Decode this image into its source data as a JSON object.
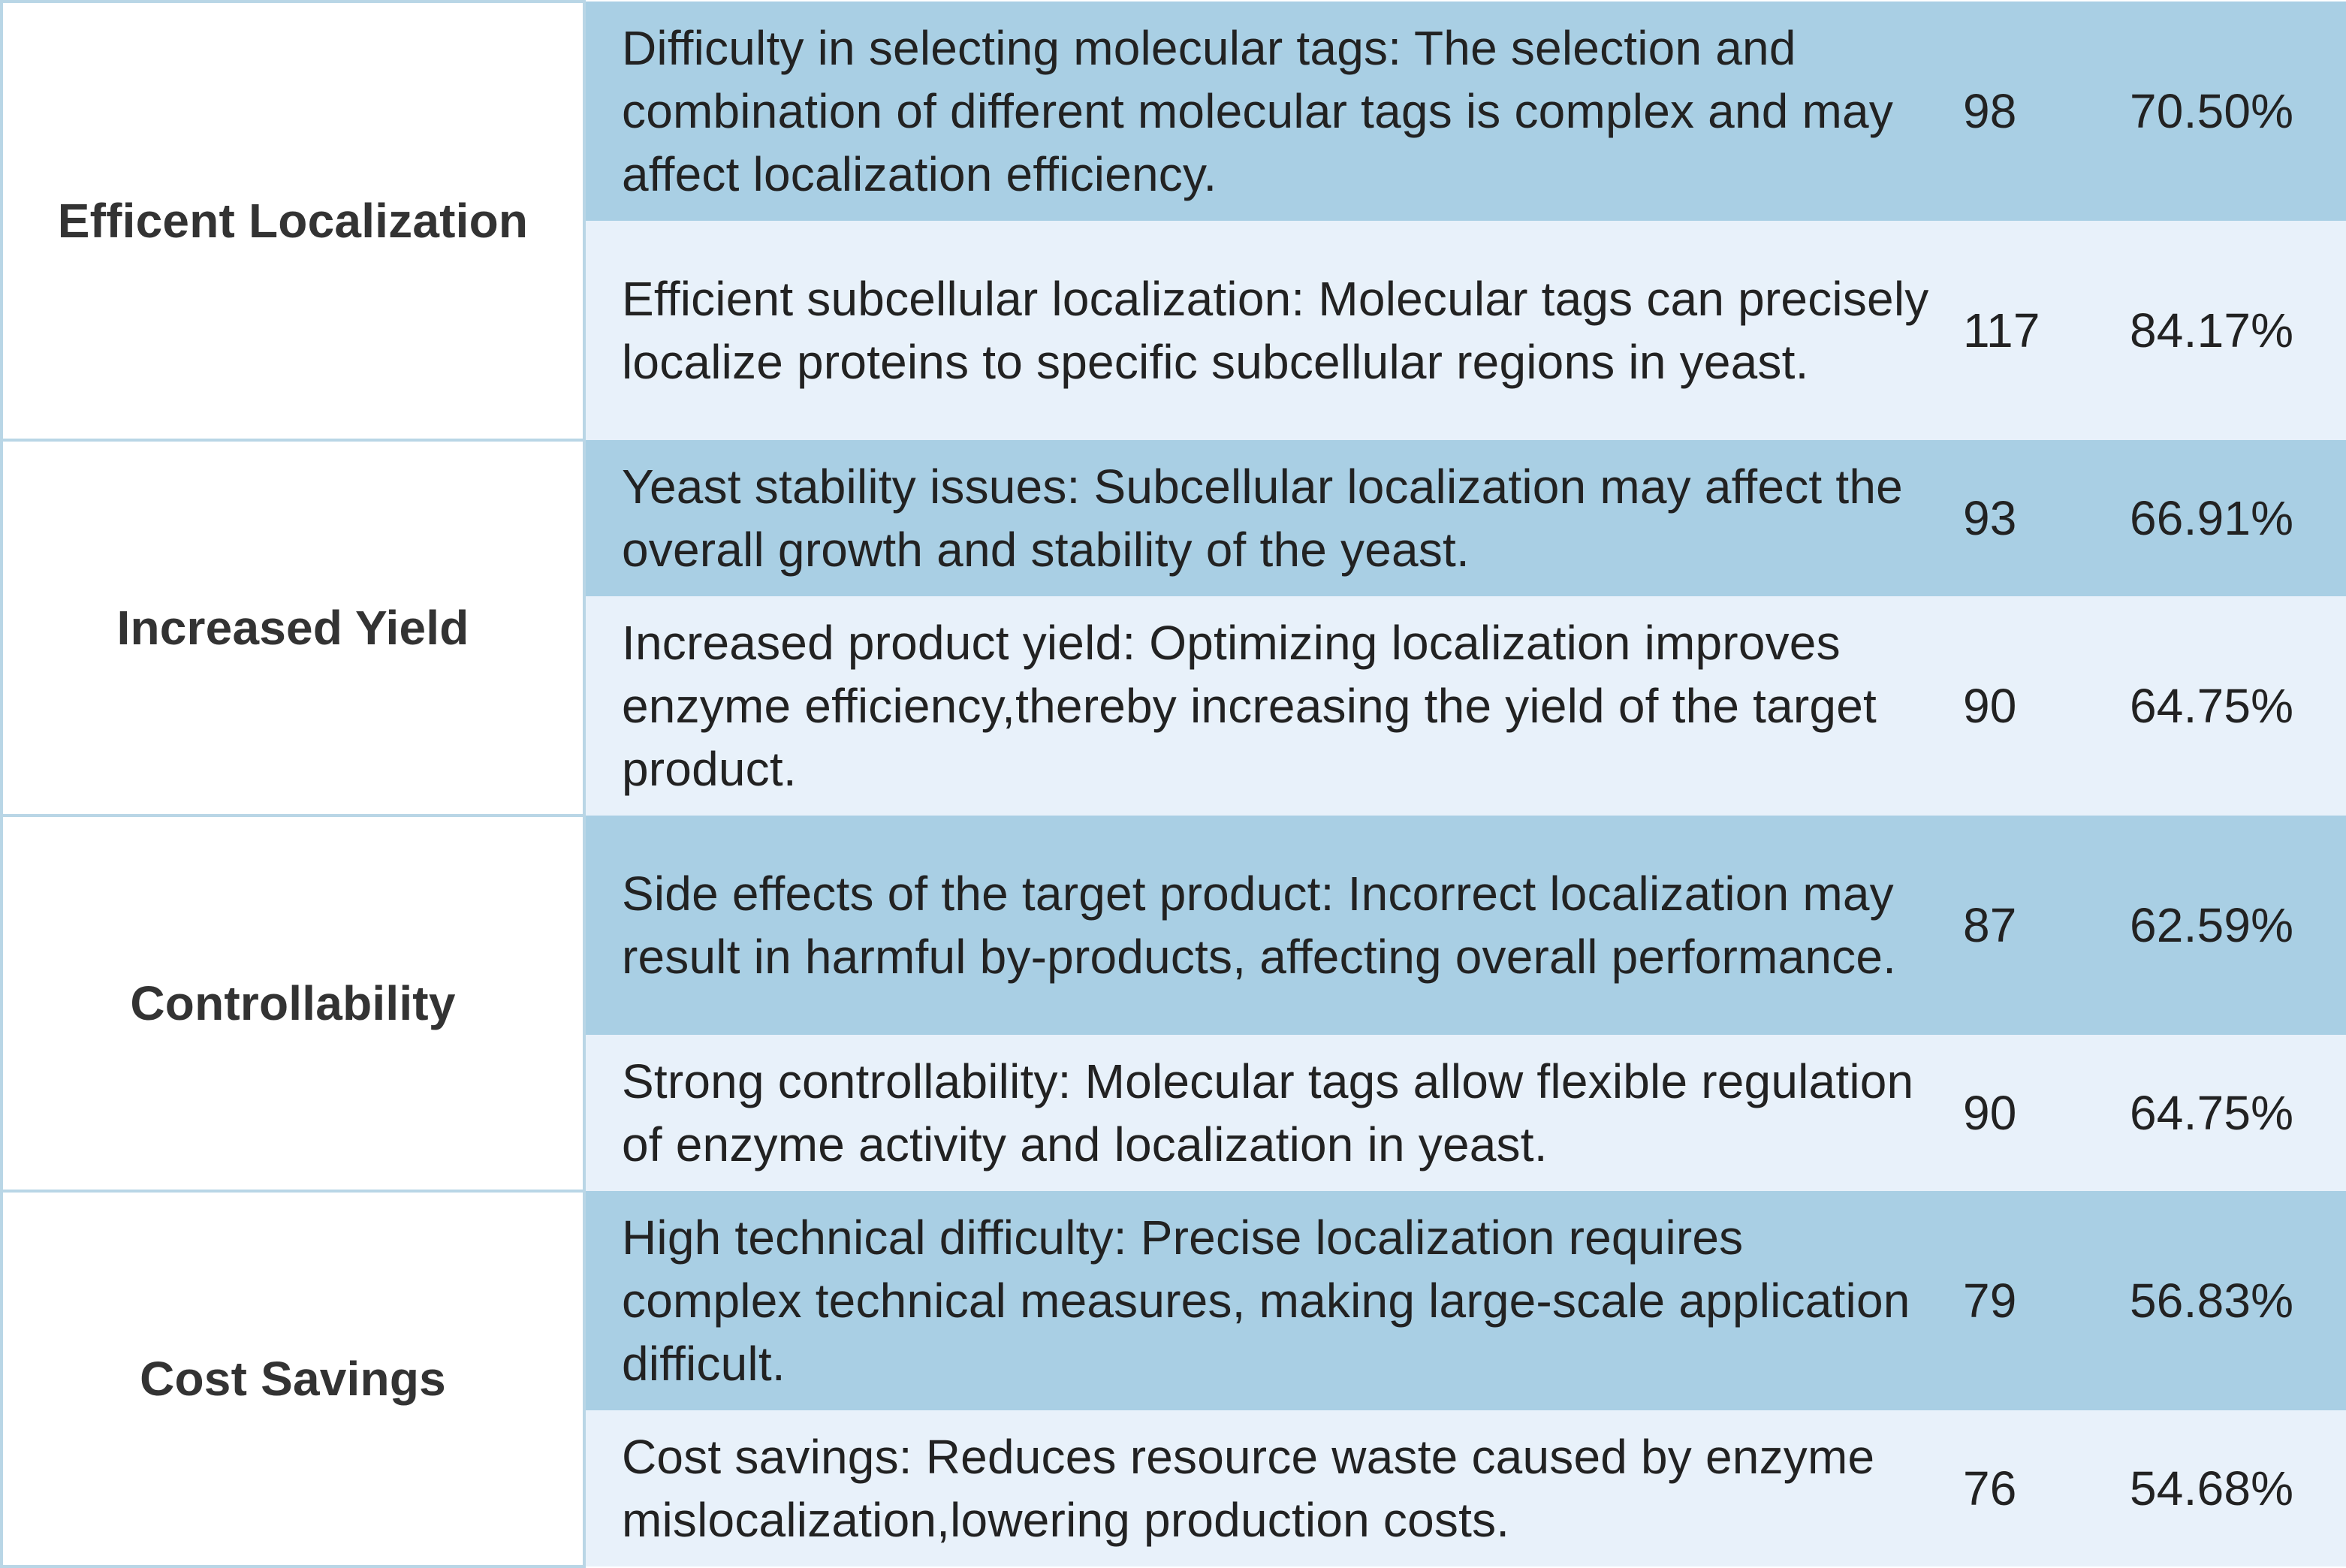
{
  "table": {
    "groups": [
      {
        "category": "Efficent Localization",
        "rows": [
          {
            "text": "Difficulty in selecting molecular tags: The selection and combination of different molecular tags is complex and may affect localization efficiency.",
            "count": "98",
            "percent": "70.50%"
          },
          {
            "text": "Efficient subcellular localization: Molecular tags can precisely localize proteins to specific subcellular regions in yeast.",
            "count": "117",
            "percent": "84.17%"
          }
        ]
      },
      {
        "category": "Increased Yield",
        "rows": [
          {
            "text": "Yeast stability issues: Subcellular localization may affect the overall growth and stability of the yeast.",
            "count": "93",
            "percent": "66.91%"
          },
          {
            "text": "Increased product yield: Optimizing localization improves enzyme efficiency,thereby increasing the yield of the target product.",
            "count": "90",
            "percent": "64.75%"
          }
        ]
      },
      {
        "category": "Controllability",
        "rows": [
          {
            "text": "Side effects of the target product: Incorrect localization may result in harmful by-products, affecting overall performance.",
            "count": "87",
            "percent": "62.59%"
          },
          {
            "text": "Strong controllability: Molecular tags allow flexible regulation of enzyme activity and localization in yeast.",
            "count": "90",
            "percent": "64.75%"
          }
        ]
      },
      {
        "category": "Cost Savings",
        "rows": [
          {
            "text": "High technical difficulty: Precise localization requires complex technical measures, making large-scale application difficult.",
            "count": "79",
            "percent": "56.83%"
          },
          {
            "text": "Cost savings: Reduces resource waste caused by enzyme mislocalization,lowering production costs.",
            "count": "76",
            "percent": "54.68%"
          }
        ]
      }
    ]
  },
  "colors": {
    "dark_row": "#a9cfe4",
    "light_row": "#e8f1fa",
    "border": "#b9d6e6"
  }
}
